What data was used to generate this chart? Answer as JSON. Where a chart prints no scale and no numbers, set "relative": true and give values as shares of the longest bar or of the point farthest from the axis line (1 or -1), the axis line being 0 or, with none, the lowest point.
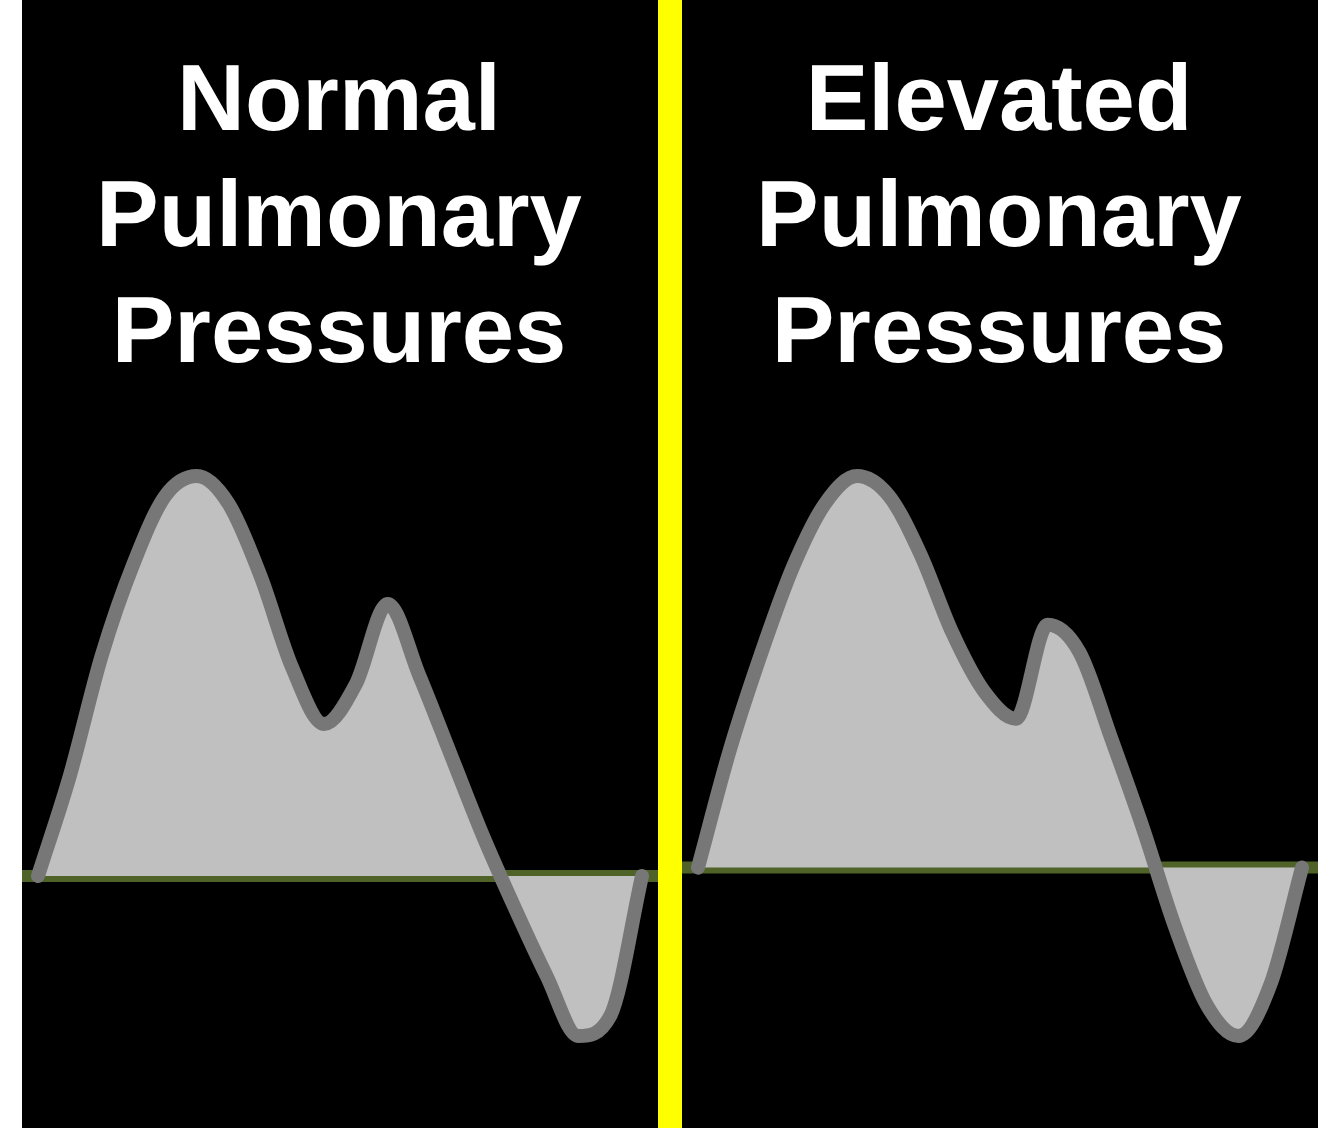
{
  "chart_data": [
    {
      "type": "area",
      "title": "Normal Pulmonary Pressures",
      "categories": [
        null,
        null,
        null,
        null,
        null,
        null,
        null,
        null,
        null,
        null,
        null,
        null,
        null,
        null,
        null,
        null,
        null,
        null,
        null,
        null
      ],
      "relative": true,
      "series": [
        {
          "color": "#c0c0c0",
          "values": [
            0,
            0.25,
            0.55,
            0.78,
            0.95,
            1,
            0.93,
            0.75,
            0.52,
            0.38,
            0.48,
            0.68,
            0.5,
            0.3,
            0.1,
            -0.08,
            -0.25,
            -0.4,
            -0.35,
            0
          ]
        }
      ]
    },
    {
      "type": "area",
      "title": "Elevated Pulmonary Pressures",
      "categories": [
        null,
        null,
        null,
        null,
        null,
        null,
        null,
        null,
        null,
        null,
        null,
        null,
        null,
        null,
        null,
        null,
        null,
        null,
        null,
        null
      ],
      "relative": true,
      "series": [
        {
          "color": "#c0c0c0",
          "values": [
            0,
            0.3,
            0.55,
            0.77,
            0.93,
            1,
            0.95,
            0.8,
            0.6,
            0.45,
            0.38,
            0.62,
            0.55,
            0.33,
            0.1,
            -0.15,
            -0.35,
            -0.43,
            -0.3,
            0
          ]
        }
      ]
    }
  ]
}
